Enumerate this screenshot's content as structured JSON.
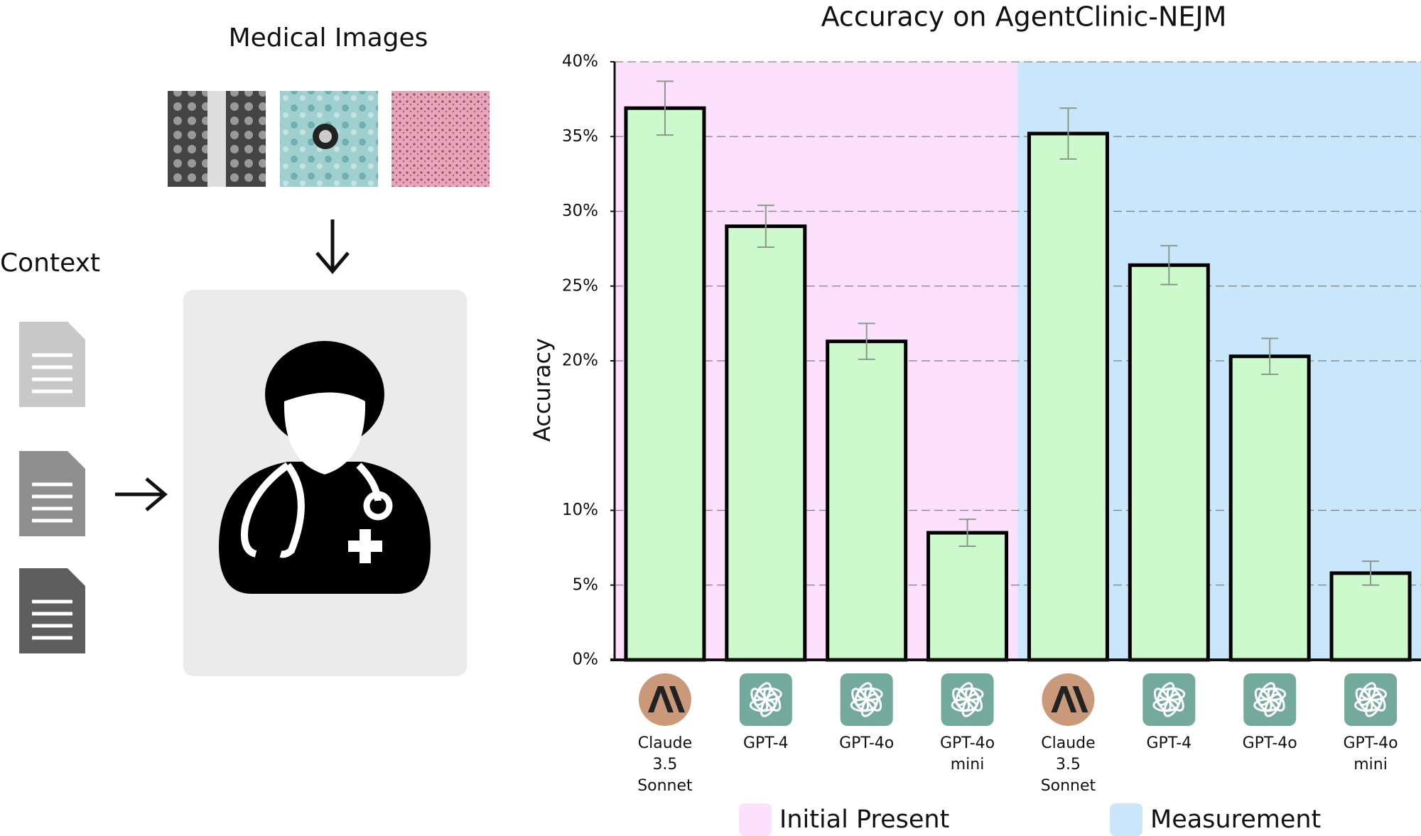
{
  "diagram": {
    "images_label": "Medical Images",
    "context_label": "Context"
  },
  "chart_data": {
    "type": "bar",
    "title": "Accuracy on AgentClinic-NEJM",
    "y_label": "Accuracy",
    "ylim": [
      0,
      40
    ],
    "yticks": [
      {
        "value": 0,
        "label": "0%"
      },
      {
        "value": 5,
        "label": "5%"
      },
      {
        "value": 10,
        "label": "10%"
      },
      {
        "value": 20,
        "label": "20%"
      },
      {
        "value": 25,
        "label": "25%"
      },
      {
        "value": 30,
        "label": "30%"
      },
      {
        "value": 35,
        "label": "35%"
      },
      {
        "value": 40,
        "label": "40%"
      }
    ],
    "grid": true,
    "bar_color": "#ccfacc",
    "groups": [
      {
        "name": "Initial Present",
        "color": "#fde0fb",
        "categories": [
          "Claude 3.5 Sonnet",
          "GPT-4",
          "GPT-4o",
          "GPT-4o mini"
        ],
        "values": [
          36.9,
          29.0,
          21.3,
          8.5
        ],
        "errors": [
          1.8,
          1.4,
          1.2,
          0.9
        ]
      },
      {
        "name": "Measurement",
        "color": "#c9e6fb",
        "categories": [
          "Claude 3.5 Sonnet",
          "GPT-4",
          "GPT-4o",
          "GPT-4o mini"
        ],
        "values": [
          35.2,
          26.4,
          20.3,
          5.8
        ],
        "errors": [
          1.7,
          1.3,
          1.2,
          0.8
        ]
      }
    ]
  }
}
